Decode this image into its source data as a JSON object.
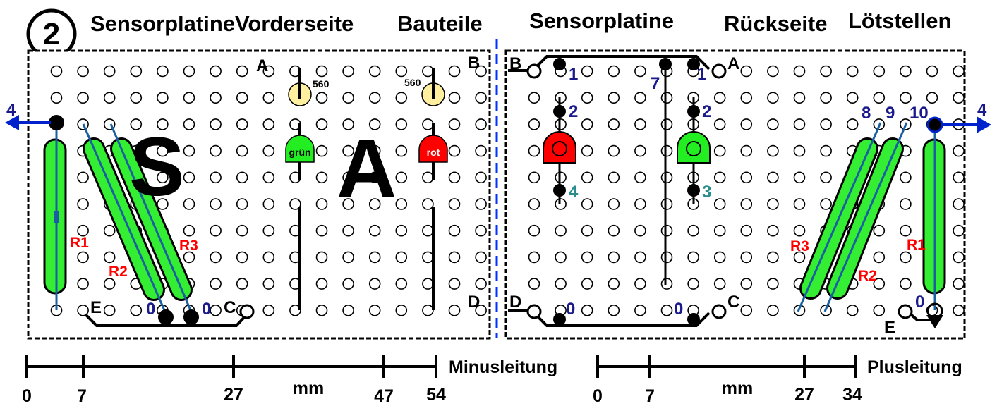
{
  "step_number": "2",
  "front": {
    "title_1": "Sensorplatine",
    "title_2": "Vorderseite",
    "title_3": "Bauteile",
    "corner_a": "A",
    "corner_b": "B",
    "corner_c": "C",
    "corner_d": "D",
    "corner_e": "E",
    "resistor_value_1": "560",
    "resistor_value_2": "560",
    "led_green_label": "grün",
    "led_red_label": "rot",
    "big_letter_s": "S",
    "big_letter_a": "A",
    "r1": "R1",
    "r2": "R2",
    "r3": "R3",
    "zero_1": "0",
    "zero_2": "0",
    "arrow_label": "4"
  },
  "back": {
    "title_1": "Sensorplatine",
    "title_2": "Rückseite",
    "title_3": "Lötstellen",
    "corner_a": "A",
    "corner_b": "B",
    "corner_c": "C",
    "corner_d": "D",
    "corner_e": "E",
    "pin_1a": "1",
    "pin_7": "7",
    "pin_1b": "1",
    "pin_2a": "2",
    "pin_2b": "2",
    "pin_4": "4",
    "pin_3": "3",
    "pin_8": "8",
    "pin_9": "9",
    "pin_10": "10",
    "arrow_label": "4",
    "r1": "R1",
    "r2": "R2",
    "r3": "R3",
    "zero_1": "0",
    "zero_2": "0",
    "zero_3": "0"
  },
  "scale_front": {
    "ticks": [
      "0",
      "7",
      "27",
      "47",
      "54"
    ],
    "unit": "mm",
    "label": "Minusleitung"
  },
  "scale_back": {
    "ticks": [
      "0",
      "7",
      "27",
      "34"
    ],
    "unit": "mm",
    "label": "Plusleitung"
  },
  "colors": {
    "board": "#ffffff",
    "outline": "#000000",
    "resistor": "#33ee33",
    "wire": "#1a5fa0",
    "led_green": "#22ee22",
    "led_red": "#ff0000",
    "led_yellow": "#fff0a0",
    "arrow": "#0022cc",
    "divider": "#0033ff",
    "resistor_label": "#ff0000",
    "pin_number": "#1a1a8c",
    "pin_number_teal": "#2a8c8c"
  }
}
